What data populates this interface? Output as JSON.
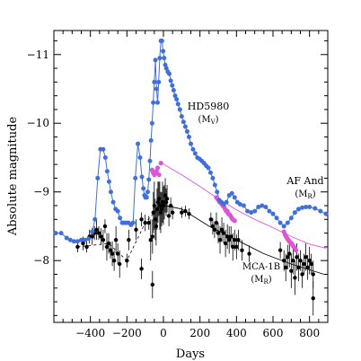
{
  "chart_data": {
    "type": "scatter",
    "xlabel": "Days",
    "ylabel": "Absolute magnitude",
    "xlim": [
      -600,
      900
    ],
    "ylim": [
      -7.1,
      -11.35
    ],
    "y_inverted": true,
    "grid": false,
    "x_ticks": [
      -400,
      -200,
      0,
      200,
      400,
      600,
      800
    ],
    "x_tick_labels": [
      "−400",
      "−200",
      "0",
      "200",
      "400",
      "600",
      "800"
    ],
    "y_ticks": [
      -8,
      -9,
      -10,
      -11
    ],
    "y_tick_labels": [
      "−8",
      "−9",
      "−10",
      "−11"
    ],
    "colors": {
      "hd5980": "#3f6fd9",
      "afand": "#dd55d6",
      "mca1b": "#000000",
      "afand_line": "#dd55d6"
    },
    "series": [
      {
        "name": "HD5980",
        "band": "(M",
        "band_sub": "V",
        "band_close": ")",
        "color": "#3f6fd9",
        "style": "line-markers",
        "x": [
          -590,
          -560,
          -530,
          -510,
          -490,
          -470,
          -450,
          -430,
          -410,
          -390,
          -375,
          -360,
          -345,
          -330,
          -318,
          -308,
          -298,
          -288,
          -275,
          -262,
          -250,
          -238,
          -226,
          -214,
          -202,
          -190,
          -178,
          -166,
          -154,
          -140,
          -128,
          -118,
          -110,
          -104,
          -98,
          -92,
          -86,
          -80,
          -74,
          -68,
          -62,
          -56,
          -50,
          -44,
          -38,
          -32,
          -26,
          -20,
          -14,
          -8,
          -2,
          4,
          10,
          16,
          24,
          32,
          40,
          48,
          56,
          64,
          72,
          80,
          90,
          100,
          110,
          120,
          130,
          140,
          150,
          162,
          174,
          186,
          198,
          210,
          222,
          234,
          246,
          258,
          270,
          282,
          294,
          306,
          318,
          330,
          345,
          360,
          375,
          390,
          405,
          420,
          440,
          460,
          480,
          500,
          520,
          540,
          560,
          580,
          600,
          620,
          640,
          660,
          680,
          700,
          720,
          740,
          760,
          780,
          800,
          830,
          860,
          890
        ],
        "y": [
          -8.4,
          -8.4,
          -8.33,
          -8.3,
          -8.28,
          -8.28,
          -8.3,
          -8.3,
          -8.32,
          -8.42,
          -8.6,
          -9.2,
          -9.62,
          -9.62,
          -9.5,
          -9.3,
          -9.15,
          -9.0,
          -8.85,
          -8.75,
          -8.72,
          -8.62,
          -8.55,
          -8.55,
          -8.55,
          -8.55,
          -8.52,
          -8.55,
          -9.2,
          -9.7,
          -9.5,
          -9.22,
          -9.05,
          -8.95,
          -8.92,
          -8.92,
          -9.0,
          -9.18,
          -9.45,
          -9.75,
          -10.0,
          -10.3,
          -10.6,
          -10.92,
          -10.5,
          -10.3,
          -10.6,
          -10.95,
          -11.2,
          -11.2,
          -11.05,
          -10.95,
          -10.85,
          -10.8,
          -10.75,
          -10.72,
          -10.62,
          -10.55,
          -10.48,
          -10.4,
          -10.35,
          -10.28,
          -10.2,
          -10.1,
          -10.02,
          -9.95,
          -9.88,
          -9.8,
          -9.7,
          -9.62,
          -9.56,
          -9.5,
          -9.48,
          -9.45,
          -9.42,
          -9.38,
          -9.35,
          -9.28,
          -9.2,
          -9.1,
          -9.0,
          -8.88,
          -8.85,
          -8.82,
          -8.85,
          -8.95,
          -8.98,
          -8.92,
          -8.85,
          -8.82,
          -8.8,
          -8.72,
          -8.7,
          -8.72,
          -8.78,
          -8.8,
          -8.78,
          -8.72,
          -8.68,
          -8.62,
          -8.55,
          -8.5,
          -8.55,
          -8.62,
          -8.7,
          -8.75,
          -8.77,
          -8.78,
          -8.78,
          -8.76,
          -8.72,
          -8.68
        ]
      },
      {
        "name": "AF And",
        "band": "(M",
        "band_sub": "R",
        "band_close": ")",
        "color": "#dd55d6",
        "style": "markers",
        "x": [
          -62,
          -56,
          -50,
          -44,
          -38,
          -32,
          -24,
          -14,
          290,
          296,
          302,
          308,
          314,
          320,
          326,
          332,
          338,
          344,
          350,
          356,
          362,
          368,
          374,
          380,
          390,
          660,
          666,
          672,
          678,
          684,
          690,
          696,
          702,
          708,
          714,
          720,
          726
        ],
        "y": [
          -9.32,
          -9.28,
          -9.25,
          -9.27,
          -9.3,
          -9.35,
          -9.25,
          -9.42,
          -8.92,
          -8.9,
          -8.88,
          -8.85,
          -8.85,
          -8.82,
          -8.8,
          -8.78,
          -8.75,
          -8.72,
          -8.72,
          -8.68,
          -8.67,
          -8.65,
          -8.62,
          -8.6,
          -8.58,
          -8.42,
          -8.38,
          -8.35,
          -8.32,
          -8.3,
          -8.28,
          -8.26,
          -8.25,
          -8.22,
          -8.2,
          -8.18,
          -8.15
        ]
      },
      {
        "name": "MCA-1B",
        "band": "(M",
        "band_sub": "R",
        "band_close": ")",
        "color": "#000000",
        "style": "markers-errorbars",
        "x": [
          -470,
          -440,
          -420,
          -405,
          -390,
          -378,
          -366,
          -354,
          -342,
          -330,
          -320,
          -310,
          -300,
          -290,
          -280,
          -270,
          -260,
          -250,
          -240,
          -200,
          -190,
          -150,
          -120,
          -100,
          -80,
          -70,
          -60,
          -55,
          -50,
          -45,
          -40,
          -35,
          -30,
          -25,
          -20,
          -15,
          -10,
          -5,
          0,
          5,
          10,
          15,
          20,
          30,
          40,
          50,
          100,
          120,
          140,
          260,
          270,
          280,
          290,
          300,
          310,
          320,
          330,
          340,
          350,
          360,
          370,
          380,
          390,
          400,
          410,
          430,
          470,
          640,
          660,
          670,
          680,
          690,
          700,
          710,
          720,
          730,
          740,
          750,
          760,
          770,
          780,
          790,
          800,
          810,
          820
        ],
        "y": [
          -8.2,
          -8.25,
          -8.2,
          -8.35,
          -8.35,
          -8.4,
          -8.45,
          -8.4,
          -8.35,
          -8.3,
          -8.5,
          -8.2,
          -8.25,
          -8.15,
          -8.1,
          -8.0,
          -8.3,
          -8.1,
          -7.95,
          -8.0,
          -8.3,
          -8.45,
          -8.6,
          -8.55,
          -8.55,
          -8.3,
          -8.35,
          -8.7,
          -8.8,
          -8.6,
          -8.5,
          -8.75,
          -8.85,
          -8.9,
          -8.8,
          -8.7,
          -8.75,
          -8.85,
          -8.8,
          -8.85,
          -8.95,
          -8.85,
          -8.9,
          -8.65,
          -8.8,
          -8.7,
          -8.7,
          -8.72,
          -8.68,
          -8.6,
          -8.5,
          -8.45,
          -8.55,
          -8.4,
          -8.3,
          -8.45,
          -8.4,
          -8.25,
          -8.35,
          -8.3,
          -8.35,
          -8.2,
          -8.3,
          -8.2,
          -8.3,
          -8.15,
          -8.1,
          -8.15,
          -8.0,
          -7.9,
          -8.05,
          -8.1,
          -7.85,
          -8.0,
          -7.75,
          -8.05,
          -7.9,
          -8.0,
          -7.8,
          -7.95,
          -8.05,
          -7.9,
          -8.0,
          -7.95,
          -7.8
        ],
        "err": [
          0.08,
          0.1,
          0.08,
          0.1,
          0.12,
          0.1,
          0.15,
          0.1,
          0.12,
          0.15,
          0.1,
          0.2,
          0.15,
          0.12,
          0.18,
          0.15,
          0.2,
          0.15,
          0.2,
          0.1,
          0.15,
          0.15,
          0.1,
          0.12,
          0.1,
          0.3,
          0.25,
          0.3,
          0.35,
          0.3,
          0.28,
          0.3,
          0.3,
          0.25,
          0.35,
          0.3,
          0.25,
          0.3,
          0.28,
          0.25,
          0.25,
          0.2,
          0.2,
          0.15,
          0.12,
          0.1,
          0.08,
          0.08,
          0.08,
          0.1,
          0.12,
          0.12,
          0.15,
          0.15,
          0.2,
          0.18,
          0.15,
          0.2,
          0.18,
          0.2,
          0.15,
          0.2,
          0.15,
          0.18,
          0.15,
          0.15,
          0.12,
          0.12,
          0.15,
          0.2,
          0.18,
          0.2,
          0.25,
          0.2,
          0.25,
          0.2,
          0.2,
          0.15,
          0.2,
          0.15,
          0.2,
          0.18,
          0.2,
          0.15,
          0.2
        ]
      }
    ],
    "mca1b_dashed_x": [
      -470,
      -300,
      -200,
      -100,
      0
    ],
    "mca1b_dashed_y": [
      -8.2,
      -8.25,
      -8.0,
      -8.55,
      -8.85
    ],
    "mca1b_fit_x": [
      -20,
      100,
      250,
      400,
      550,
      700,
      880
    ],
    "mca1b_fit_y": [
      -8.82,
      -8.75,
      -8.5,
      -8.3,
      -8.1,
      -7.95,
      -7.8
    ],
    "afand_fit_x": [
      -10,
      100,
      200,
      300,
      400,
      500,
      600,
      700,
      800,
      890
    ],
    "afand_fit_y": [
      -9.42,
      -9.25,
      -9.08,
      -8.9,
      -8.74,
      -8.6,
      -8.48,
      -8.35,
      -8.24,
      -8.18
    ],
    "lone_points_x": [
      -120,
      -60,
      820
    ],
    "lone_points_y": [
      -7.88,
      -7.65,
      -7.45
    ],
    "lone_points_err": [
      0.15,
      0.2,
      0.25
    ]
  }
}
